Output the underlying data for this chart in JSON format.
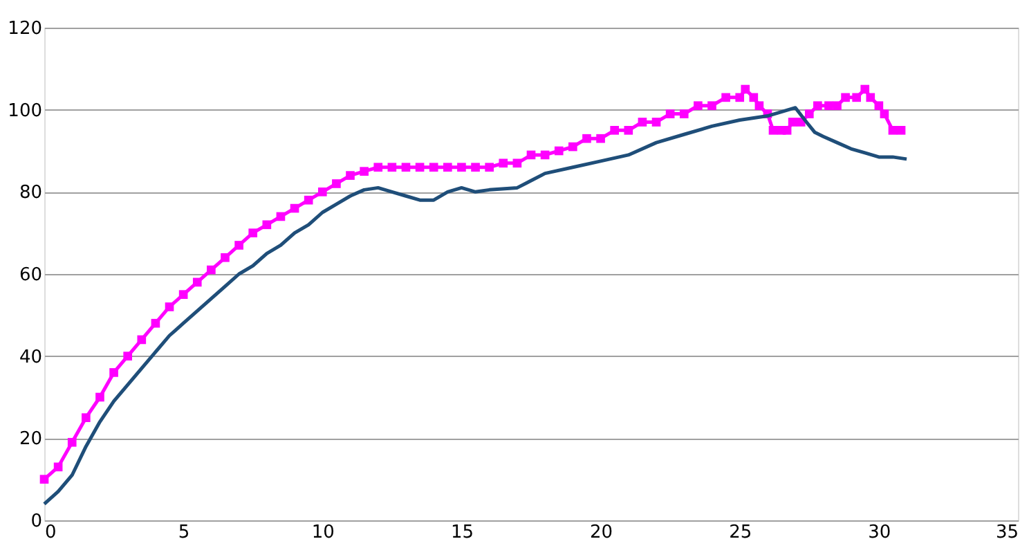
{
  "chart_data": {
    "type": "line",
    "xlim": [
      0,
      35
    ],
    "xticks": [
      0,
      5,
      10,
      15,
      20,
      25,
      30,
      35
    ],
    "ylim": [
      0,
      120
    ],
    "yticks": [
      0,
      20,
      40,
      60,
      80,
      100,
      120
    ],
    "grid": "y",
    "series": [
      {
        "color": "#ff00ff",
        "marker": "square",
        "x": [
          0,
          0.5,
          1,
          1.5,
          2,
          2.5,
          3,
          3.5,
          4,
          4.5,
          5,
          5.5,
          6,
          6.5,
          7,
          7.5,
          8,
          8.5,
          9,
          9.5,
          10,
          10.5,
          11,
          11.5,
          12,
          12.5,
          13,
          13.5,
          14,
          14.5,
          15,
          15.5,
          16,
          16.5,
          17,
          17.5,
          18,
          18.5,
          19,
          19.5,
          20,
          20.5,
          21,
          21.5,
          22,
          22.5,
          23,
          23.5,
          24,
          24.5,
          25,
          25.2,
          25.5,
          25.7,
          26,
          26.2,
          26.5,
          26.7,
          26.9,
          27.2,
          27.5,
          27.8,
          28.2,
          28.5,
          28.8,
          29.2,
          29.5,
          29.7,
          30,
          30.2,
          30.5,
          30.8
        ],
        "values": [
          10,
          13,
          19,
          25,
          30,
          36,
          40,
          44,
          48,
          52,
          55,
          58,
          61,
          64,
          67,
          70,
          72,
          74,
          76,
          78,
          80,
          82,
          84,
          85,
          86,
          86,
          86,
          86,
          86,
          86,
          86,
          86,
          86,
          87,
          87,
          89,
          89,
          90,
          91,
          93,
          93,
          95,
          95,
          97,
          97,
          99,
          99,
          101,
          101,
          103,
          103,
          105,
          103,
          101,
          99,
          95,
          95,
          95,
          97,
          97,
          99,
          101,
          101,
          101,
          103,
          103,
          105,
          103,
          101,
          99,
          95,
          95
        ]
      },
      {
        "color": "#1f4e79",
        "marker": "none",
        "x": [
          0,
          0.5,
          1,
          1.5,
          2,
          2.5,
          3,
          3.5,
          4,
          4.5,
          5,
          5.5,
          6,
          6.5,
          7,
          7.5,
          8,
          8.5,
          9,
          9.5,
          10,
          10.5,
          11,
          11.5,
          12,
          12.5,
          13,
          13.5,
          14,
          14.5,
          15,
          15.5,
          16,
          17,
          18,
          19,
          20,
          21,
          22,
          23,
          24,
          25,
          26,
          27,
          27.4,
          27.7,
          28,
          28.5,
          29,
          29.5,
          30,
          30.5,
          31
        ],
        "values": [
          4,
          7,
          11,
          18,
          24,
          29,
          33,
          37,
          41,
          45,
          48,
          51,
          54,
          57,
          60,
          62,
          65,
          67,
          70,
          72,
          75,
          77,
          79,
          80.5,
          81,
          80,
          79,
          78,
          78,
          80,
          81,
          80,
          80.5,
          81,
          84.5,
          86,
          87.5,
          89,
          92,
          94,
          96,
          97.5,
          98.5,
          100.5,
          97,
          94.5,
          93.5,
          92,
          90.5,
          89.5,
          88.5,
          88.5,
          88
        ]
      }
    ]
  }
}
